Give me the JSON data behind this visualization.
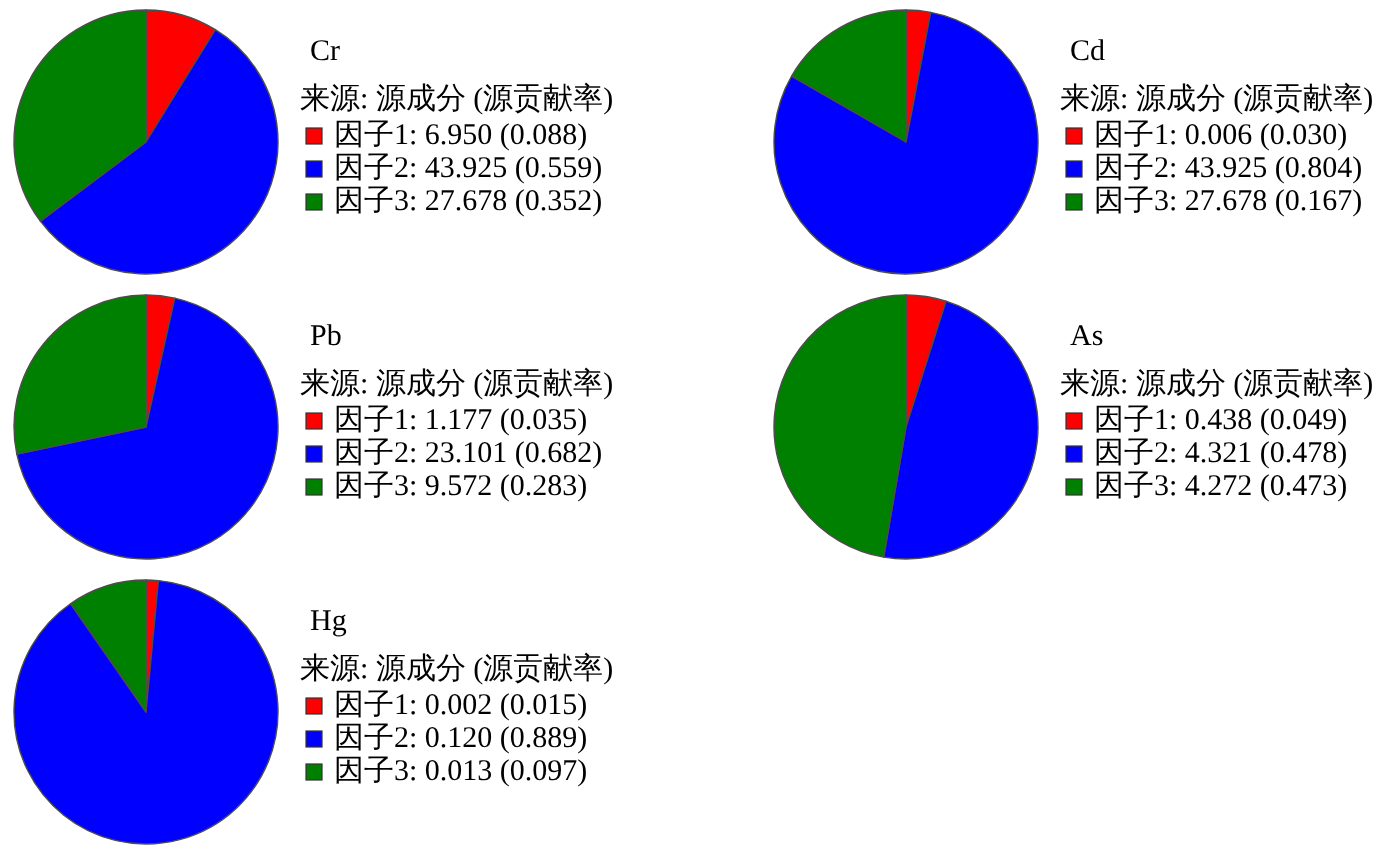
{
  "chart_data": [
    {
      "type": "pie",
      "title": "Cr",
      "legend_title": "来源: 源成分 (源贡献率)",
      "categories": [
        "因子1: 6.950 (0.088)",
        "因子2: 43.925 (0.559)",
        "因子3: 27.678 (0.352)"
      ],
      "values": [
        0.088,
        0.559,
        0.352
      ],
      "colors": [
        "#ff0000",
        "#0000ff",
        "#008000"
      ],
      "legend": "right"
    },
    {
      "type": "pie",
      "title": "Cd",
      "legend_title": "来源: 源成分 (源贡献率)",
      "categories": [
        "因子1: 0.006 (0.030)",
        "因子2: 43.925 (0.804)",
        "因子3: 27.678 (0.167)"
      ],
      "values": [
        0.03,
        0.804,
        0.167
      ],
      "colors": [
        "#ff0000",
        "#0000ff",
        "#008000"
      ],
      "legend": "right"
    },
    {
      "type": "pie",
      "title": "Pb",
      "legend_title": "来源: 源成分 (源贡献率)",
      "categories": [
        "因子1: 1.177 (0.035)",
        "因子2: 23.101 (0.682)",
        "因子3: 9.572 (0.283)"
      ],
      "values": [
        0.035,
        0.682,
        0.283
      ],
      "colors": [
        "#ff0000",
        "#0000ff",
        "#008000"
      ],
      "legend": "right"
    },
    {
      "type": "pie",
      "title": "As",
      "legend_title": "来源: 源成分 (源贡献率)",
      "categories": [
        "因子1: 0.438 (0.049)",
        "因子2: 4.321 (0.478)",
        "因子3: 4.272 (0.473)"
      ],
      "values": [
        0.049,
        0.478,
        0.473
      ],
      "colors": [
        "#ff0000",
        "#0000ff",
        "#008000"
      ],
      "legend": "right"
    },
    {
      "type": "pie",
      "title": "Hg",
      "legend_title": "来源: 源成分 (源贡献率)",
      "categories": [
        "因子1: 0.002 (0.015)",
        "因子2: 0.120 (0.889)",
        "因子3: 0.013 (0.097)"
      ],
      "values": [
        0.015,
        0.889,
        0.097
      ],
      "colors": [
        "#ff0000",
        "#0000ff",
        "#008000"
      ],
      "legend": "right"
    }
  ]
}
